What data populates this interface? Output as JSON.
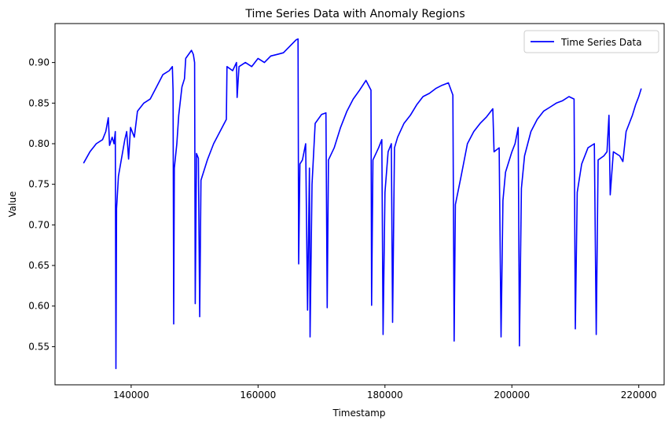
{
  "chart_data": {
    "type": "line",
    "title": "Time Series Data with Anomaly Regions",
    "xlabel": "Timestamp",
    "ylabel": "Value",
    "xlim": [
      128000,
      224000
    ],
    "ylim": [
      0.503,
      0.948
    ],
    "xticks": [
      140000,
      160000,
      180000,
      200000,
      220000
    ],
    "xtick_labels": [
      "140000",
      "160000",
      "180000",
      "200000",
      "220000"
    ],
    "yticks": [
      0.55,
      0.6,
      0.65,
      0.7,
      0.75,
      0.8,
      0.85,
      0.9
    ],
    "ytick_labels": [
      "0.55",
      "0.60",
      "0.65",
      "0.70",
      "0.75",
      "0.80",
      "0.85",
      "0.90"
    ],
    "grid": false,
    "legend": {
      "position": "top-right",
      "entries": [
        "Time Series Data"
      ]
    },
    "series": [
      {
        "name": "Time Series Data",
        "color": "#0000ff",
        "points": [
          [
            132500,
            0.776
          ],
          [
            133500,
            0.79
          ],
          [
            134500,
            0.8
          ],
          [
            135500,
            0.805
          ],
          [
            136000,
            0.815
          ],
          [
            136400,
            0.832
          ],
          [
            136600,
            0.798
          ],
          [
            137000,
            0.808
          ],
          [
            137300,
            0.8
          ],
          [
            137500,
            0.815
          ],
          [
            137600,
            0.523
          ],
          [
            137700,
            0.72
          ],
          [
            138000,
            0.76
          ],
          [
            139000,
            0.805
          ],
          [
            139300,
            0.815
          ],
          [
            139600,
            0.781
          ],
          [
            139900,
            0.82
          ],
          [
            140500,
            0.808
          ],
          [
            141000,
            0.84
          ],
          [
            142000,
            0.85
          ],
          [
            143000,
            0.855
          ],
          [
            144000,
            0.87
          ],
          [
            145000,
            0.885
          ],
          [
            146000,
            0.89
          ],
          [
            146500,
            0.895
          ],
          [
            146600,
            0.865
          ],
          [
            146700,
            0.578
          ],
          [
            146800,
            0.77
          ],
          [
            147200,
            0.8
          ],
          [
            147500,
            0.835
          ],
          [
            148000,
            0.87
          ],
          [
            148400,
            0.88
          ],
          [
            148600,
            0.905
          ],
          [
            149500,
            0.915
          ],
          [
            149800,
            0.91
          ],
          [
            150000,
            0.9
          ],
          [
            150100,
            0.603
          ],
          [
            150300,
            0.788
          ],
          [
            150600,
            0.782
          ],
          [
            150800,
            0.587
          ],
          [
            151000,
            0.755
          ],
          [
            152000,
            0.78
          ],
          [
            153000,
            0.8
          ],
          [
            154000,
            0.815
          ],
          [
            155000,
            0.83
          ],
          [
            155100,
            0.895
          ],
          [
            156000,
            0.89
          ],
          [
            156600,
            0.9
          ],
          [
            156700,
            0.857
          ],
          [
            157000,
            0.895
          ],
          [
            158000,
            0.9
          ],
          [
            159000,
            0.895
          ],
          [
            160000,
            0.905
          ],
          [
            161000,
            0.9
          ],
          [
            162000,
            0.908
          ],
          [
            163000,
            0.91
          ],
          [
            164000,
            0.912
          ],
          [
            165000,
            0.92
          ],
          [
            166000,
            0.928
          ],
          [
            166300,
            0.929
          ],
          [
            166400,
            0.652
          ],
          [
            166600,
            0.775
          ],
          [
            167000,
            0.78
          ],
          [
            167500,
            0.8
          ],
          [
            167800,
            0.595
          ],
          [
            168100,
            0.77
          ],
          [
            168200,
            0.562
          ],
          [
            168500,
            0.75
          ],
          [
            169000,
            0.825
          ],
          [
            170000,
            0.836
          ],
          [
            170700,
            0.838
          ],
          [
            170900,
            0.598
          ],
          [
            171100,
            0.78
          ],
          [
            172000,
            0.795
          ],
          [
            173000,
            0.82
          ],
          [
            174000,
            0.84
          ],
          [
            175000,
            0.855
          ],
          [
            176000,
            0.866
          ],
          [
            177000,
            0.878
          ],
          [
            177800,
            0.866
          ],
          [
            177900,
            0.601
          ],
          [
            178100,
            0.78
          ],
          [
            179000,
            0.795
          ],
          [
            179500,
            0.805
          ],
          [
            179700,
            0.565
          ],
          [
            180000,
            0.74
          ],
          [
            180500,
            0.79
          ],
          [
            181000,
            0.8
          ],
          [
            181200,
            0.58
          ],
          [
            181500,
            0.795
          ],
          [
            182000,
            0.808
          ],
          [
            183000,
            0.825
          ],
          [
            184000,
            0.835
          ],
          [
            185000,
            0.848
          ],
          [
            186000,
            0.858
          ],
          [
            187000,
            0.862
          ],
          [
            188000,
            0.868
          ],
          [
            189000,
            0.872
          ],
          [
            190000,
            0.875
          ],
          [
            190700,
            0.86
          ],
          [
            190900,
            0.557
          ],
          [
            191100,
            0.725
          ],
          [
            192000,
            0.76
          ],
          [
            193000,
            0.8
          ],
          [
            194000,
            0.815
          ],
          [
            195000,
            0.825
          ],
          [
            196000,
            0.833
          ],
          [
            197000,
            0.843
          ],
          [
            197200,
            0.79
          ],
          [
            198000,
            0.795
          ],
          [
            198300,
            0.562
          ],
          [
            198600,
            0.73
          ],
          [
            199000,
            0.765
          ],
          [
            200000,
            0.79
          ],
          [
            200500,
            0.8
          ],
          [
            201000,
            0.82
          ],
          [
            201200,
            0.551
          ],
          [
            201500,
            0.745
          ],
          [
            202000,
            0.785
          ],
          [
            203000,
            0.815
          ],
          [
            204000,
            0.83
          ],
          [
            205000,
            0.84
          ],
          [
            206000,
            0.845
          ],
          [
            207000,
            0.85
          ],
          [
            208000,
            0.853
          ],
          [
            209000,
            0.858
          ],
          [
            209800,
            0.855
          ],
          [
            210000,
            0.572
          ],
          [
            210300,
            0.74
          ],
          [
            211000,
            0.775
          ],
          [
            212000,
            0.795
          ],
          [
            213000,
            0.8
          ],
          [
            213300,
            0.565
          ],
          [
            213600,
            0.78
          ],
          [
            214500,
            0.785
          ],
          [
            215000,
            0.79
          ],
          [
            215300,
            0.835
          ],
          [
            215500,
            0.737
          ],
          [
            216000,
            0.79
          ],
          [
            217000,
            0.785
          ],
          [
            217500,
            0.778
          ],
          [
            218000,
            0.815
          ],
          [
            219000,
            0.835
          ],
          [
            219500,
            0.848
          ],
          [
            220000,
            0.858
          ],
          [
            220400,
            0.868
          ]
        ]
      }
    ]
  }
}
